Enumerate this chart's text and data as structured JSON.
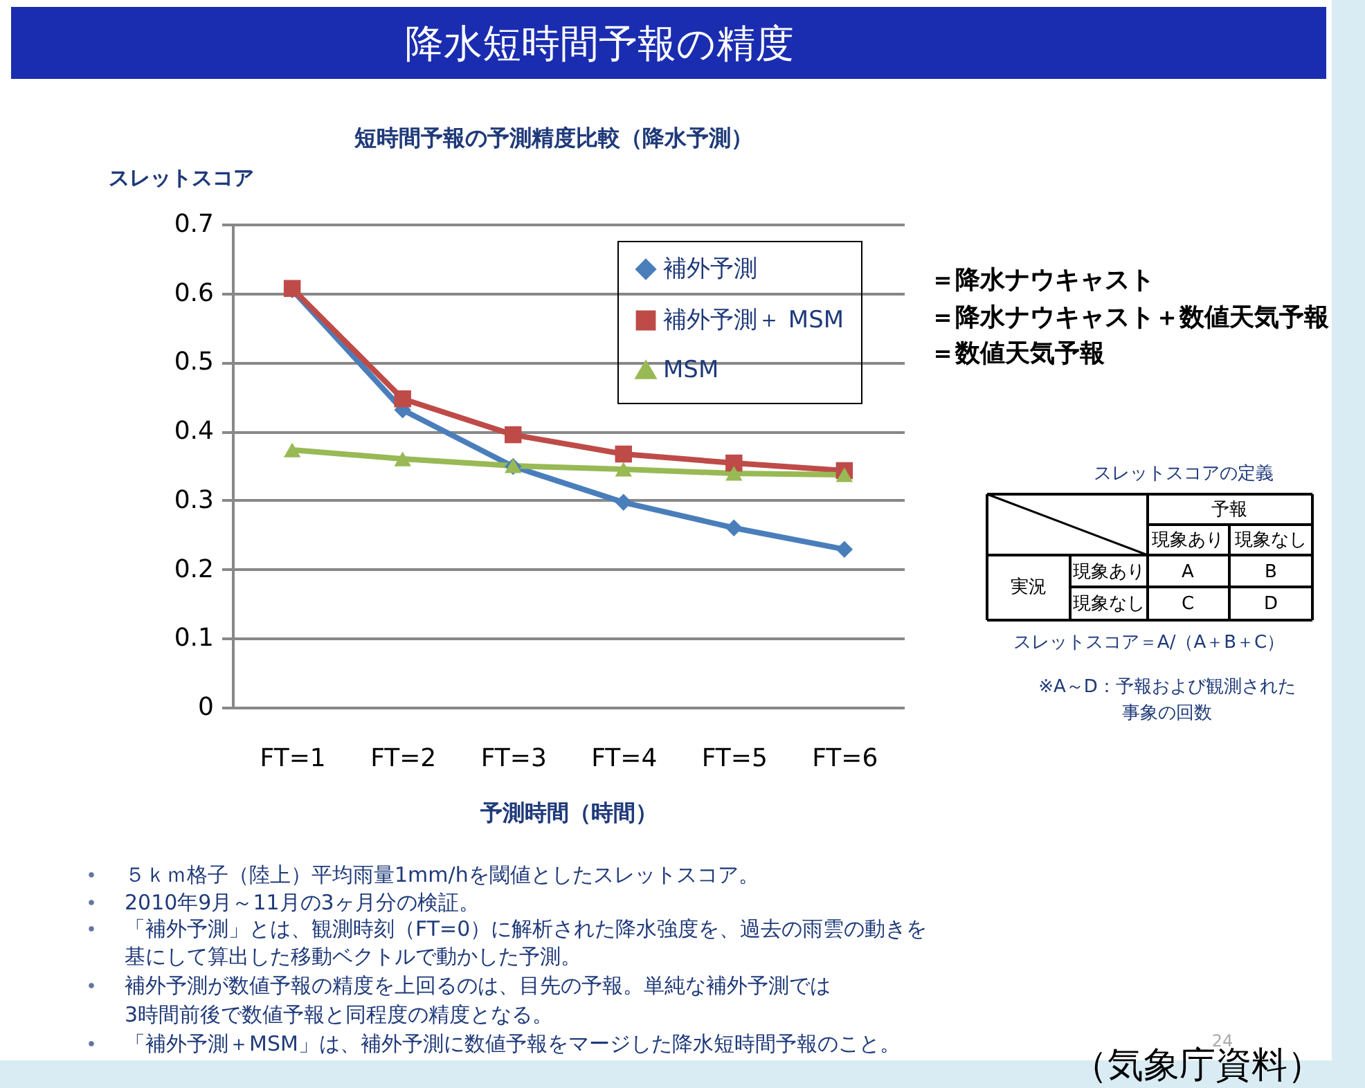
{
  "chart_data": {
    "type": "line",
    "title": "降水短時間予報の精度",
    "subtitle": "短時間予報の予測精度比較（降水予測）",
    "xlabel": "予測時間（時間）",
    "ylabel": "スレットスコア",
    "categories": [
      "FT=1",
      "FT=2",
      "FT=3",
      "FT=4",
      "FT=5",
      "FT=6"
    ],
    "series": [
      {
        "name": "補外予測",
        "color": "#4a7ebb",
        "marker": "diamond",
        "values": [
          0.605,
          0.431,
          0.349,
          0.297,
          0.26,
          0.229
        ]
      },
      {
        "name": "補外予測＋ MSM",
        "color": "#be4b48",
        "marker": "square",
        "values": [
          0.607,
          0.447,
          0.395,
          0.367,
          0.354,
          0.343
        ]
      },
      {
        "name": "MSM",
        "color": "#98b954",
        "marker": "triangle",
        "values": [
          0.373,
          0.36,
          0.35,
          0.345,
          0.339,
          0.337
        ]
      }
    ],
    "ylim": [
      0,
      0.7
    ],
    "yticks": [
      {
        "value": 0,
        "label": "0"
      },
      0.1,
      0.2,
      0.3,
      0.4,
      0.5,
      0.6,
      0.7
    ],
    "grid": "y",
    "legend": "top right",
    "line_style": "solid",
    "annotations": [
      "＝降水ナウキャスト",
      "＝降水ナウキャスト＋数値天気予報",
      "＝数値天気予報",
      "スレットスコアの定義",
      "予報",
      "現象あり",
      "現象なし",
      "実況",
      "現象あり",
      "現象なし",
      "A",
      "B",
      "C",
      "D",
      "スレットスコア＝A/（A＋B＋C）",
      "※A～D：予報および観測された",
      "事象の回数",
      "５ｋｍ格子（陸上）平均雨量1mm/hを閾値としたスレットスコア。",
      "2010年9月～11月の3ヶ月分の検証。",
      "「補外予測」とは、観測時刻（FT=0）に解析された降水強度を、過去の雨雲の動きを",
      "基にして算出した移動ベクトルで動かした予測。",
      "補外予測が数値予報の精度を上回るのは、目先の予報。単純な補外予測では",
      "3時間前後で数値予報と同程度の精度となる。",
      "「補外予測＋MSM」は、補外予測に数値予報をマージした降水短時間予報のこと。",
      "24",
      "（気象庁資料）"
    ]
  }
}
